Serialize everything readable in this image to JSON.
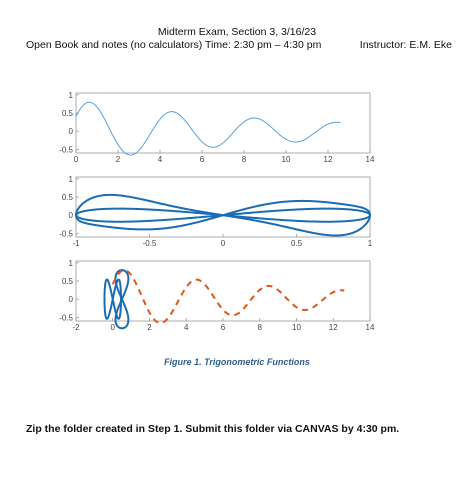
{
  "header": {
    "title": "Midterm Exam, Section 3, 3/16/23",
    "left": "Open Book and notes (no calculators)   Time: 2:30 pm – 4:30 pm",
    "right": "Instructor: E.M. Eke"
  },
  "caption": "Figure 1. Trigonometric Functions",
  "instruction": "Zip the folder created in Step 1. Submit this folder via CANVAS by 4:30 pm.",
  "chart_data": [
    {
      "type": "line",
      "description_of_function": "y = cos(t)*exp(-0.1 t) style decaying oscillation",
      "xlim": [
        0,
        14
      ],
      "ylim": [
        -0.6,
        1.05
      ],
      "xticks": [
        "0",
        "2",
        "4",
        "6",
        "8",
        "10",
        "12",
        "14"
      ],
      "yticks": [
        "1",
        "0.5",
        "0",
        "-0.5"
      ],
      "series": [
        {
          "color": "#5aa0d8",
          "style": "solid",
          "x_range": [
            0,
            12.6
          ]
        }
      ]
    },
    {
      "type": "line",
      "xlim": [
        -1,
        1
      ],
      "ylim": [
        -0.6,
        1.05
      ],
      "xticks": [
        "-1",
        "-0.5",
        "0",
        "0.5",
        "1"
      ],
      "yticks": [
        "1",
        "0.5",
        "0",
        "-0.5"
      ],
      "series": [
        {
          "color": "#1a6db5",
          "style": "solid",
          "curve": "parametric"
        }
      ]
    },
    {
      "type": "line",
      "xlim": [
        -2,
        14
      ],
      "ylim": [
        -0.6,
        1.05
      ],
      "xticks": [
        "-2",
        "0",
        "2",
        "4",
        "6",
        "8",
        "10",
        "12",
        "14"
      ],
      "yticks": [
        "1",
        "0.5",
        "0",
        "-0.5"
      ],
      "series": [
        {
          "color": "#1a6db5",
          "style": "solid",
          "curve": "parametric"
        },
        {
          "color": "#e0561c",
          "style": "dashed",
          "x_range": [
            0,
            12.6
          ]
        }
      ]
    }
  ]
}
